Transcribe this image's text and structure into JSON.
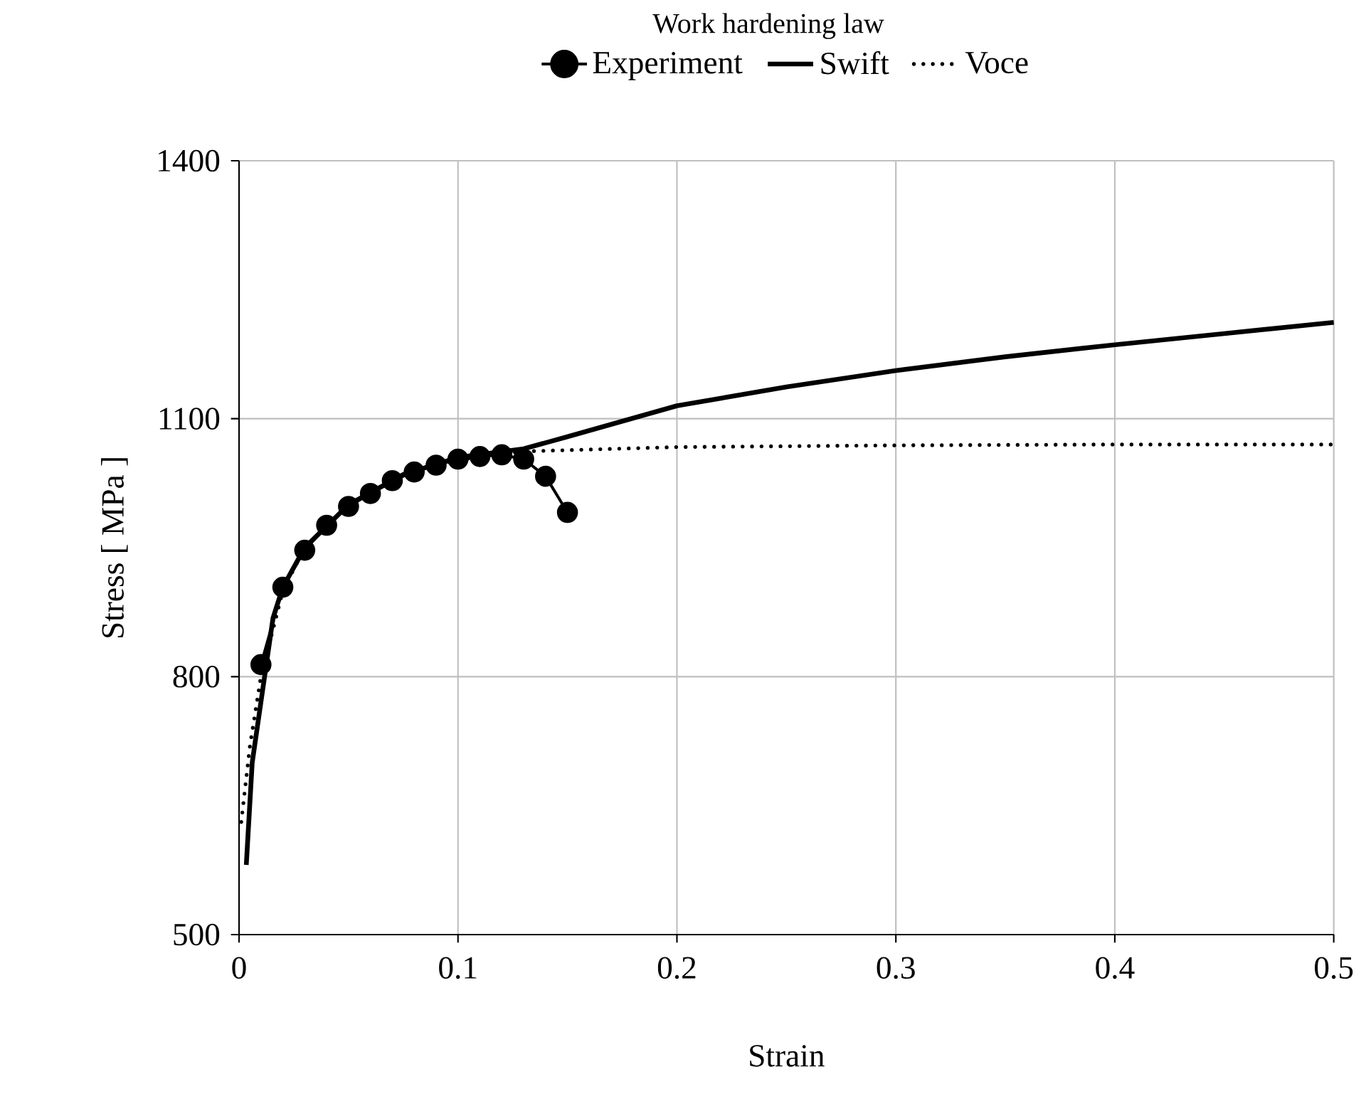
{
  "chart_data": {
    "type": "line",
    "xlabel": "Strain",
    "ylabel": "Stress [ MPa ]",
    "legend_title": "Work hardening law",
    "xlim": [
      0,
      0.5
    ],
    "ylim": [
      500,
      1400
    ],
    "xticks": [
      0,
      0.1,
      0.2,
      0.3,
      0.4,
      0.5
    ],
    "yticks": [
      500,
      800,
      1100,
      1400
    ],
    "grid": true,
    "legend": "top",
    "series": [
      {
        "name": "Experiment",
        "color": "#000000",
        "marker": "circle",
        "line_style": "solid",
        "x": [
          0.01,
          0.02,
          0.03,
          0.04,
          0.05,
          0.06,
          0.07,
          0.08,
          0.09,
          0.1,
          0.11,
          0.12,
          0.13,
          0.14,
          0.15
        ],
        "values": [
          814,
          904,
          947,
          976,
          998,
          1013,
          1028,
          1038,
          1046,
          1053,
          1056,
          1058,
          1053,
          1033,
          991
        ]
      },
      {
        "name": "Swift",
        "color": "#000000",
        "marker": "none",
        "line_style": "solid",
        "x": [
          0.0033,
          0.006,
          0.0155,
          0.02,
          0.03,
          0.05,
          0.075,
          0.1,
          0.13,
          0.15,
          0.2,
          0.25,
          0.3,
          0.35,
          0.4,
          0.45,
          0.5
        ],
        "values": [
          581,
          700,
          868,
          904,
          950,
          1000,
          1035,
          1055,
          1065,
          1079,
          1115,
          1137,
          1156,
          1172,
          1186,
          1199,
          1212
        ]
      },
      {
        "name": "Voce",
        "color": "#000000",
        "marker": "none",
        "line_style": "dotted",
        "x": [
          0.001,
          0.005,
          0.01,
          0.02,
          0.03,
          0.05,
          0.075,
          0.1,
          0.13,
          0.2,
          0.3,
          0.4,
          0.5
        ],
        "values": [
          631,
          720,
          800,
          900,
          950,
          1000,
          1035,
          1052,
          1062,
          1067,
          1069,
          1070,
          1070
        ]
      }
    ]
  }
}
